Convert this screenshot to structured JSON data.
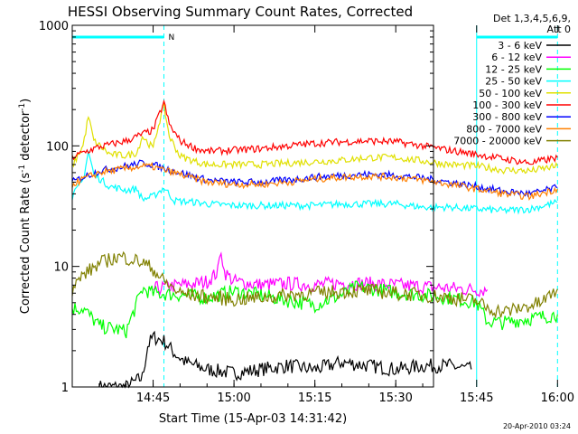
{
  "chart_data": {
    "type": "line",
    "title": "HESSI Observing Summary Count Rates, Corrected",
    "xlabel": "Start Time (15-Apr-03 14:31:42)",
    "ylabel": "Corrected Count Rate (s-1 detector-1)",
    "ylabel_parts": {
      "pre": "Corrected Count Rate (s",
      "sup1": "-1",
      "mid": " detector",
      "sup2": "-1",
      "post": ")"
    },
    "y_scale": "log",
    "ylim": [
      1,
      1000
    ],
    "xlim_minutes": [
      -5,
      62
    ],
    "x_ticks": [
      {
        "m": 10,
        "label": "14:45"
      },
      {
        "m": 25,
        "label": "15:00"
      },
      {
        "m": 40,
        "label": "15:15"
      },
      {
        "m": 55,
        "label": "15:30"
      },
      {
        "m": 70,
        "label": "15:45"
      },
      {
        "m": 85,
        "label": "16:00"
      }
    ],
    "y_ticks": [
      {
        "v": 1,
        "label": "1"
      },
      {
        "v": 10,
        "label": "10"
      },
      {
        "v": 100,
        "label": "100"
      },
      {
        "v": 1000,
        "label": "1000"
      }
    ],
    "legend_header": [
      "Det 1,3,4,5,6,9,",
      "Att 0"
    ],
    "series": [
      {
        "name": "3 - 6 keV",
        "color": "#000000",
        "points": [
          [
            0,
            1
          ],
          [
            5,
            1
          ],
          [
            8,
            1.2
          ],
          [
            9,
            2.2
          ],
          [
            10,
            2.6
          ],
          [
            12,
            2.4
          ],
          [
            14,
            1.9
          ],
          [
            16,
            1.6
          ],
          [
            20,
            1.4
          ],
          [
            25,
            1.3
          ],
          [
            30,
            1.4
          ],
          [
            35,
            1.5
          ],
          [
            40,
            1.4
          ],
          [
            45,
            1.6
          ],
          [
            50,
            1.5
          ],
          [
            55,
            1.4
          ],
          [
            60,
            1.5
          ],
          [
            65,
            1.5
          ],
          [
            69,
            1.4
          ]
        ]
      },
      {
        "name": "6 - 12 keV",
        "color": "#ff00ff",
        "points": [
          [
            10,
            6.5
          ],
          [
            15,
            7
          ],
          [
            18,
            7.2
          ],
          [
            20,
            7.5
          ],
          [
            22,
            9
          ],
          [
            22.6,
            14
          ],
          [
            23.2,
            9
          ],
          [
            25,
            7.5
          ],
          [
            30,
            7
          ],
          [
            35,
            7.2
          ],
          [
            40,
            7
          ],
          [
            45,
            7.3
          ],
          [
            50,
            7.2
          ],
          [
            55,
            7
          ],
          [
            60,
            6.8
          ],
          [
            65,
            6.6
          ],
          [
            70,
            6.4
          ],
          [
            72,
            6.4
          ]
        ]
      },
      {
        "name": "12 - 25 keV",
        "color": "#00ff00",
        "points": [
          [
            -5,
            4.5
          ],
          [
            -3,
            4.5
          ],
          [
            0,
            3.2
          ],
          [
            5,
            2.9
          ],
          [
            8,
            6.5
          ],
          [
            10,
            6
          ],
          [
            15,
            5.8
          ],
          [
            20,
            5.5
          ],
          [
            22,
            5.8
          ],
          [
            25,
            6.2
          ],
          [
            30,
            5.8
          ],
          [
            35,
            5.2
          ],
          [
            40,
            4.8
          ],
          [
            45,
            5.8
          ],
          [
            48,
            6.8
          ],
          [
            52,
            6.4
          ],
          [
            56,
            6.0
          ],
          [
            60,
            5.8
          ],
          [
            65,
            5.5
          ],
          [
            70,
            5.0
          ],
          [
            72,
            3.5
          ],
          [
            75,
            3.4
          ],
          [
            78,
            3.6
          ],
          [
            82,
            3.8
          ],
          [
            85,
            4.0
          ]
        ]
      },
      {
        "name": "25 - 50 keV",
        "color": "#00ffff",
        "points": [
          [
            -5,
            38
          ],
          [
            -3,
            52
          ],
          [
            -2,
            90
          ],
          [
            -1,
            58
          ],
          [
            2,
            46
          ],
          [
            5,
            43
          ],
          [
            7,
            44
          ],
          [
            8,
            36
          ],
          [
            10,
            38
          ],
          [
            12,
            45
          ],
          [
            14,
            35
          ],
          [
            18,
            34
          ],
          [
            20,
            33
          ],
          [
            25,
            32
          ],
          [
            30,
            32
          ],
          [
            35,
            32
          ],
          [
            40,
            32
          ],
          [
            45,
            33
          ],
          [
            50,
            33
          ],
          [
            55,
            33
          ],
          [
            60,
            31
          ],
          [
            65,
            31
          ],
          [
            70,
            30
          ],
          [
            75,
            29
          ],
          [
            80,
            30
          ],
          [
            85,
            34
          ]
        ]
      },
      {
        "name": "50 - 100 keV",
        "color": "#e0e000",
        "points": [
          [
            -5,
            68
          ],
          [
            -3,
            100
          ],
          [
            -2,
            175
          ],
          [
            -1,
            110
          ],
          [
            2,
            85
          ],
          [
            5,
            83
          ],
          [
            7,
            88
          ],
          [
            8,
            120
          ],
          [
            10,
            95
          ],
          [
            11,
            150
          ],
          [
            12,
            215
          ],
          [
            13,
            120
          ],
          [
            15,
            82
          ],
          [
            18,
            74
          ],
          [
            20,
            70
          ],
          [
            25,
            70
          ],
          [
            30,
            70
          ],
          [
            35,
            72
          ],
          [
            40,
            74
          ],
          [
            45,
            76
          ],
          [
            50,
            80
          ],
          [
            55,
            80
          ],
          [
            60,
            75
          ],
          [
            65,
            70
          ],
          [
            70,
            68
          ],
          [
            75,
            63
          ],
          [
            80,
            62
          ],
          [
            85,
            68
          ]
        ]
      },
      {
        "name": "100 - 300 keV",
        "color": "#ff0000",
        "points": [
          [
            -5,
            80
          ],
          [
            -3,
            88
          ],
          [
            0,
            98
          ],
          [
            5,
            110
          ],
          [
            8,
            125
          ],
          [
            10,
            135
          ],
          [
            11,
            175
          ],
          [
            12,
            230
          ],
          [
            13,
            150
          ],
          [
            15,
            110
          ],
          [
            18,
            95
          ],
          [
            20,
            90
          ],
          [
            25,
            92
          ],
          [
            30,
            95
          ],
          [
            35,
            100
          ],
          [
            40,
            105
          ],
          [
            45,
            108
          ],
          [
            50,
            110
          ],
          [
            55,
            108
          ],
          [
            60,
            100
          ],
          [
            65,
            92
          ],
          [
            70,
            85
          ],
          [
            75,
            78
          ],
          [
            80,
            72
          ],
          [
            85,
            80
          ]
        ]
      },
      {
        "name": "300 - 800 keV",
        "color": "#0000ff",
        "points": [
          [
            -5,
            50
          ],
          [
            -3,
            55
          ],
          [
            0,
            62
          ],
          [
            5,
            68
          ],
          [
            8,
            72
          ],
          [
            10,
            70
          ],
          [
            12,
            65
          ],
          [
            15,
            60
          ],
          [
            18,
            55
          ],
          [
            20,
            52
          ],
          [
            25,
            50
          ],
          [
            30,
            50
          ],
          [
            35,
            52
          ],
          [
            40,
            55
          ],
          [
            45,
            57
          ],
          [
            50,
            58
          ],
          [
            55,
            57
          ],
          [
            60,
            54
          ],
          [
            65,
            50
          ],
          [
            70,
            46
          ],
          [
            75,
            42
          ],
          [
            80,
            40
          ],
          [
            85,
            45
          ]
        ]
      },
      {
        "name": "800 - 7000 keV",
        "color": "#ff8000",
        "points": [
          [
            -5,
            48
          ],
          [
            -3,
            53
          ],
          [
            0,
            60
          ],
          [
            5,
            65
          ],
          [
            8,
            68
          ],
          [
            10,
            67
          ],
          [
            12,
            63
          ],
          [
            15,
            58
          ],
          [
            18,
            53
          ],
          [
            20,
            50
          ],
          [
            25,
            48
          ],
          [
            30,
            48
          ],
          [
            35,
            50
          ],
          [
            40,
            53
          ],
          [
            45,
            55
          ],
          [
            50,
            56
          ],
          [
            55,
            55
          ],
          [
            60,
            52
          ],
          [
            65,
            48
          ],
          [
            70,
            44
          ],
          [
            75,
            40
          ],
          [
            80,
            38
          ],
          [
            85,
            44
          ]
        ]
      },
      {
        "name": "7000 - 20000 keV",
        "color": "#808000",
        "points": [
          [
            -5,
            6.5
          ],
          [
            -3,
            8.5
          ],
          [
            0,
            10.5
          ],
          [
            2,
            11.5
          ],
          [
            4,
            12
          ],
          [
            6,
            11.5
          ],
          [
            8,
            10.8
          ],
          [
            10,
            9.5
          ],
          [
            12,
            7.5
          ],
          [
            15,
            6
          ],
          [
            20,
            5.6
          ],
          [
            25,
            5.3
          ],
          [
            30,
            5.5
          ],
          [
            35,
            5.8
          ],
          [
            40,
            6
          ],
          [
            45,
            6.2
          ],
          [
            50,
            6.3
          ],
          [
            55,
            6.0
          ],
          [
            60,
            5.8
          ],
          [
            65,
            5.5
          ],
          [
            70,
            5.2
          ],
          [
            72,
            4.5
          ],
          [
            75,
            4.2
          ],
          [
            78,
            4.5
          ],
          [
            82,
            5.0
          ],
          [
            85,
            6.5
          ]
        ]
      }
    ],
    "annotations": {
      "top_bar_color": "#00ffff",
      "top_bars": [
        [
          -5,
          12
        ],
        [
          70,
          85
        ]
      ],
      "n_marker": {
        "m": 12.5,
        "label": "N"
      },
      "solid_lines": [
        -5,
        70
      ],
      "dashed_lines": [
        12,
        85
      ]
    }
  },
  "footer": {
    "timestamp": "20-Apr-2010 03:24"
  }
}
